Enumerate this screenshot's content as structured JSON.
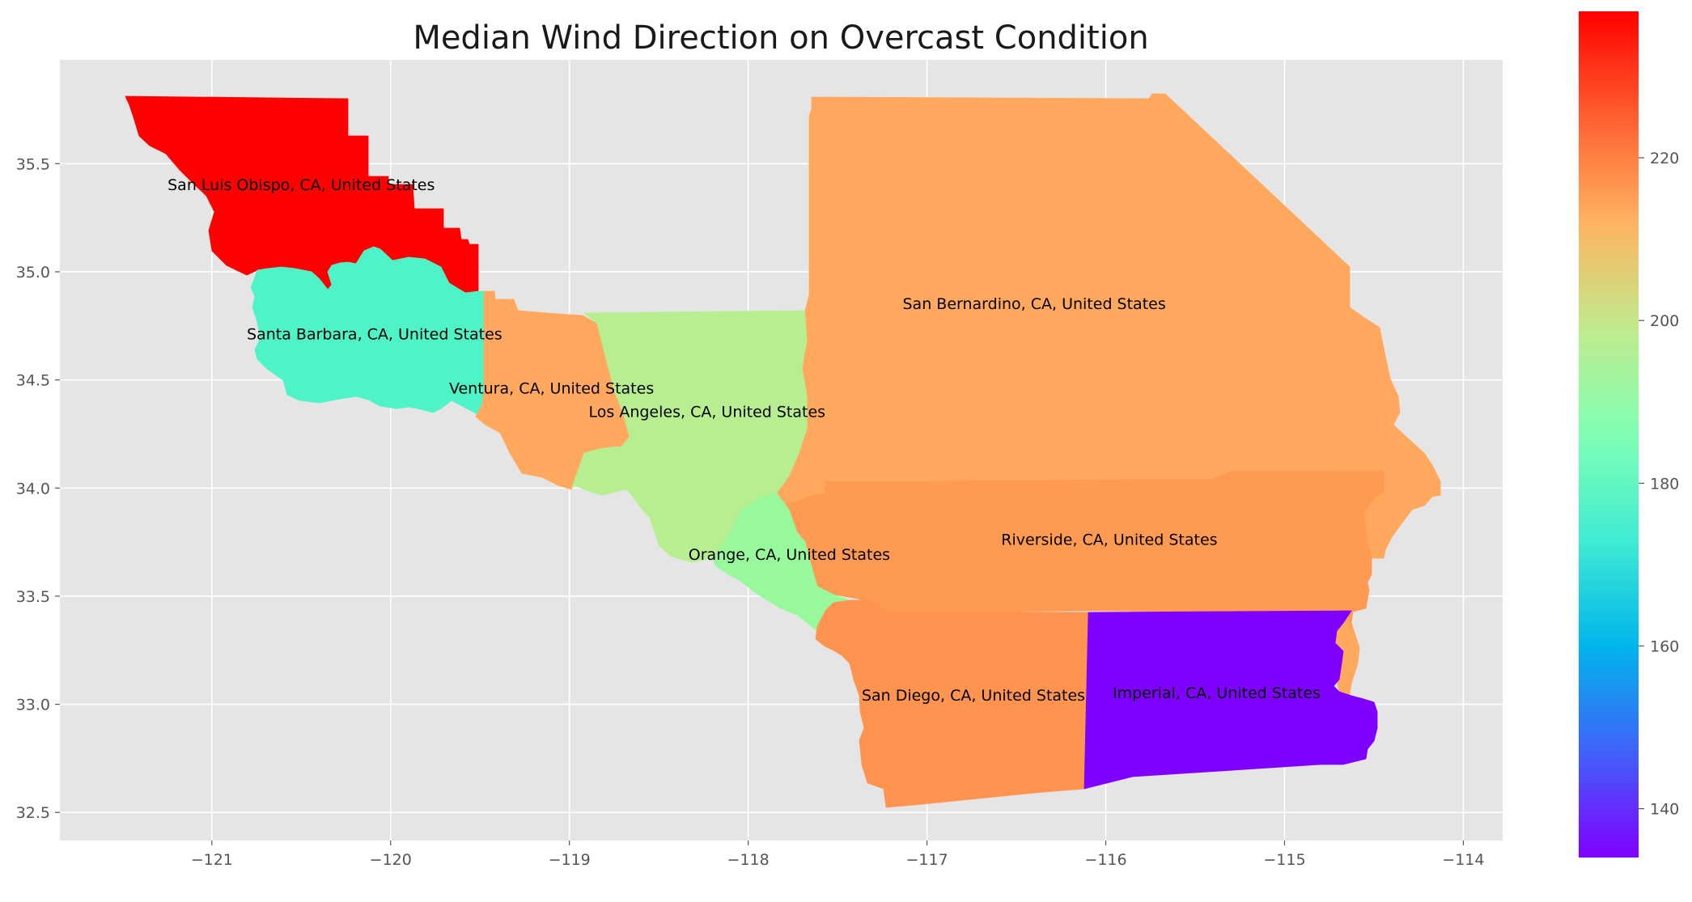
{
  "title": "Median Wind Direction on Overcast Condition",
  "map": {
    "xlim": [
      -121.85,
      -113.78
    ],
    "ylim": [
      32.37,
      35.98
    ],
    "x_ticks": [
      -121,
      -120,
      -119,
      -118,
      -117,
      -116,
      -115,
      -114
    ],
    "y_ticks": [
      32.5,
      33.0,
      33.5,
      34.0,
      34.5,
      35.0,
      35.5
    ],
    "grid": true,
    "tick_label_color": "#555555",
    "background": "#e5e5e5",
    "grid_color": "#ffffff"
  },
  "colorbar": {
    "colormap": "rainbow",
    "range": [
      134,
      238
    ],
    "ticks": [
      140,
      160,
      180,
      200,
      220
    ]
  },
  "regions": [
    {
      "key": "slo",
      "name": "San Luis Obispo, CA, United States",
      "value": 238,
      "color": "#ff0000",
      "label_lon": -120.5,
      "label_lat": 35.4
    },
    {
      "key": "sb",
      "name": "Santa Barbara, CA, United States",
      "value": 180,
      "color": "#4ef4c8",
      "label_lon": -120.09,
      "label_lat": 34.71
    },
    {
      "key": "ven",
      "name": "Ventura, CA, United States",
      "value": 216,
      "color": "#ffa85e",
      "label_lon": -119.1,
      "label_lat": 34.46
    },
    {
      "key": "la",
      "name": "Los Angeles, CA, United States",
      "value": 198,
      "color": "#b6ee90",
      "label_lon": -118.23,
      "label_lat": 34.35
    },
    {
      "key": "sbd",
      "name": "San Bernardino, CA, United States",
      "value": 216,
      "color": "#ffa85e",
      "label_lon": -116.4,
      "label_lat": 34.85
    },
    {
      "key": "riv",
      "name": "Riverside, CA, United States",
      "value": 220,
      "color": "#ff9a52",
      "label_lon": -115.98,
      "label_lat": 33.76
    },
    {
      "key": "ora",
      "name": "Orange, CA, United States",
      "value": 191,
      "color": "#98f89c",
      "label_lon": -117.77,
      "label_lat": 33.69
    },
    {
      "key": "sd",
      "name": "San Diego, CA, United States",
      "value": 220,
      "color": "#ff9450",
      "label_lon": -116.74,
      "label_lat": 33.04
    },
    {
      "key": "imp",
      "name": "Imperial, CA, United States",
      "value": 135,
      "color": "#8000ff",
      "label_lon": -115.38,
      "label_lat": 33.05
    }
  ]
}
